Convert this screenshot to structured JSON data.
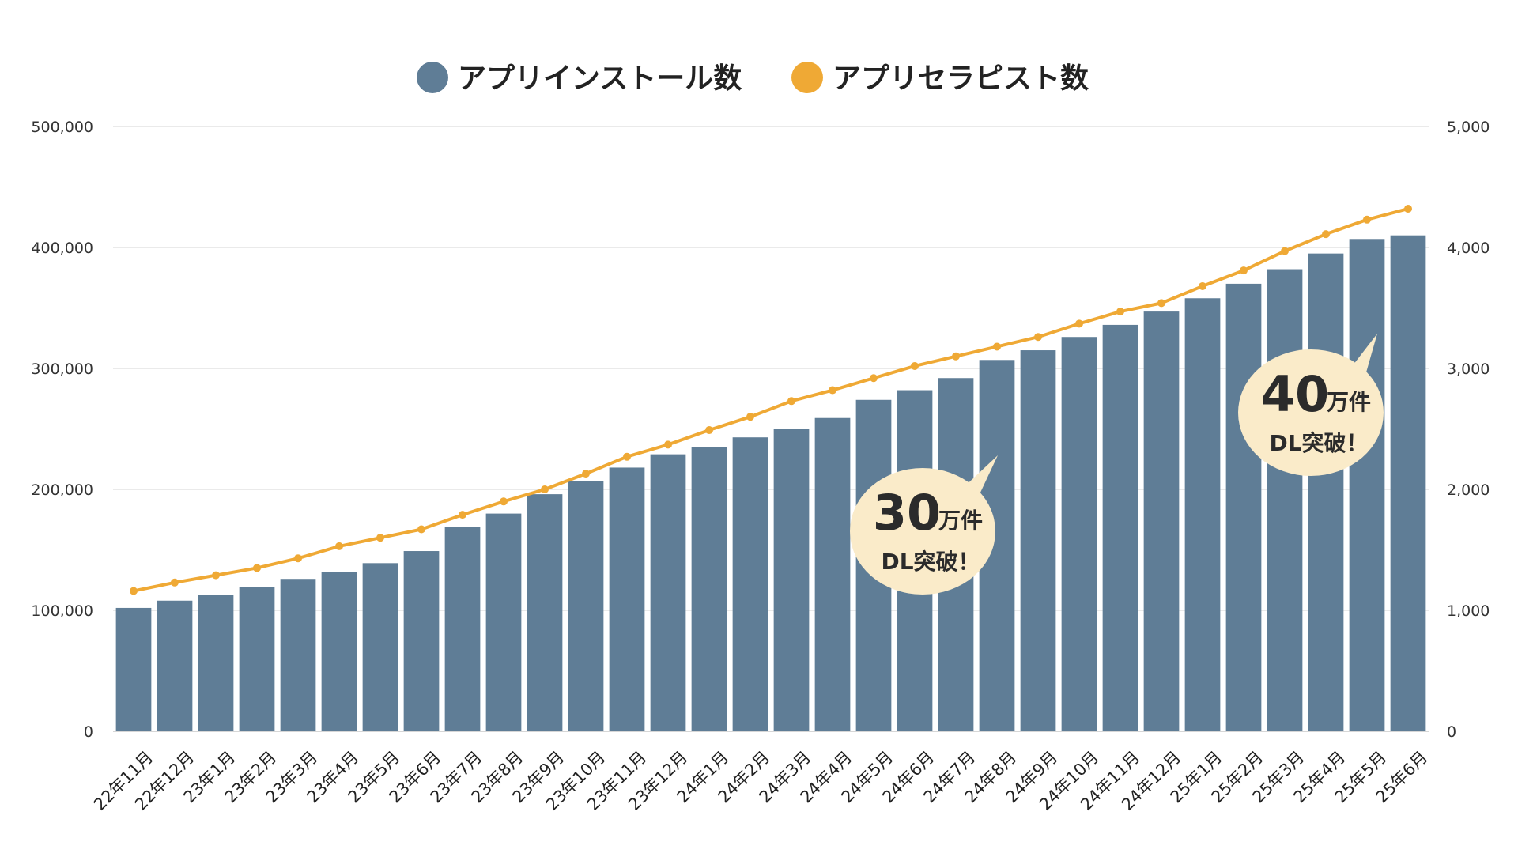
{
  "chart_data": {
    "type": "bar",
    "categories": [
      "22年11月",
      "22年12月",
      "23年1月",
      "23年2月",
      "23年3月",
      "23年4月",
      "23年5月",
      "23年6月",
      "23年7月",
      "23年8月",
      "23年9月",
      "23年10月",
      "23年11月",
      "23年12月",
      "24年1月",
      "24年2月",
      "24年3月",
      "24年4月",
      "24年5月",
      "24年6月",
      "24年7月",
      "24年8月",
      "24年9月",
      "24年10月",
      "24年11月",
      "24年12月",
      "25年1月",
      "25年2月",
      "25年3月",
      "25年4月",
      "25年5月",
      "25年6月"
    ],
    "series": [
      {
        "name": "アプリインストール数",
        "type": "bar",
        "axis": "left",
        "color": "#5f7d96",
        "values": [
          102000,
          108000,
          113000,
          119000,
          126000,
          132000,
          139000,
          149000,
          169000,
          180000,
          196000,
          207000,
          218000,
          229000,
          235000,
          243000,
          250000,
          259000,
          274000,
          282000,
          292000,
          307000,
          315000,
          326000,
          336000,
          347000,
          358000,
          370000,
          382000,
          395000,
          407000,
          410000
        ]
      },
      {
        "name": "アプリセラピスト数",
        "type": "line",
        "axis": "right",
        "color": "#efa935",
        "values": [
          1160,
          1230,
          1290,
          1350,
          1430,
          1530,
          1600,
          1670,
          1790,
          1900,
          2000,
          2130,
          2270,
          2370,
          2490,
          2600,
          2730,
          2820,
          2920,
          3020,
          3100,
          3180,
          3260,
          3370,
          3470,
          3540,
          3680,
          3810,
          3970,
          4110,
          4230,
          4320
        ]
      }
    ],
    "y_left": {
      "ylim": [
        0,
        500000
      ],
      "ticks": [
        "0",
        "100,000",
        "200,000",
        "300,000",
        "400,000",
        "500,000"
      ],
      "tick_values": [
        0,
        100000,
        200000,
        300000,
        400000,
        500000
      ]
    },
    "y_right": {
      "ylim": [
        0,
        5000
      ],
      "ticks": [
        "0",
        "1,000",
        "2,000",
        "3,000",
        "4,000",
        "5,000"
      ],
      "tick_values": [
        0,
        1000,
        2000,
        3000,
        4000,
        5000
      ]
    },
    "grid": true,
    "legend_position": "top-center",
    "annotations": [
      {
        "big": "30",
        "unit": "万件",
        "sub": "DL突破！",
        "anchor_category": "24年8月"
      },
      {
        "big": "40",
        "unit": "万件",
        "sub": "DL突破！",
        "anchor_category": "25年5月"
      }
    ]
  }
}
